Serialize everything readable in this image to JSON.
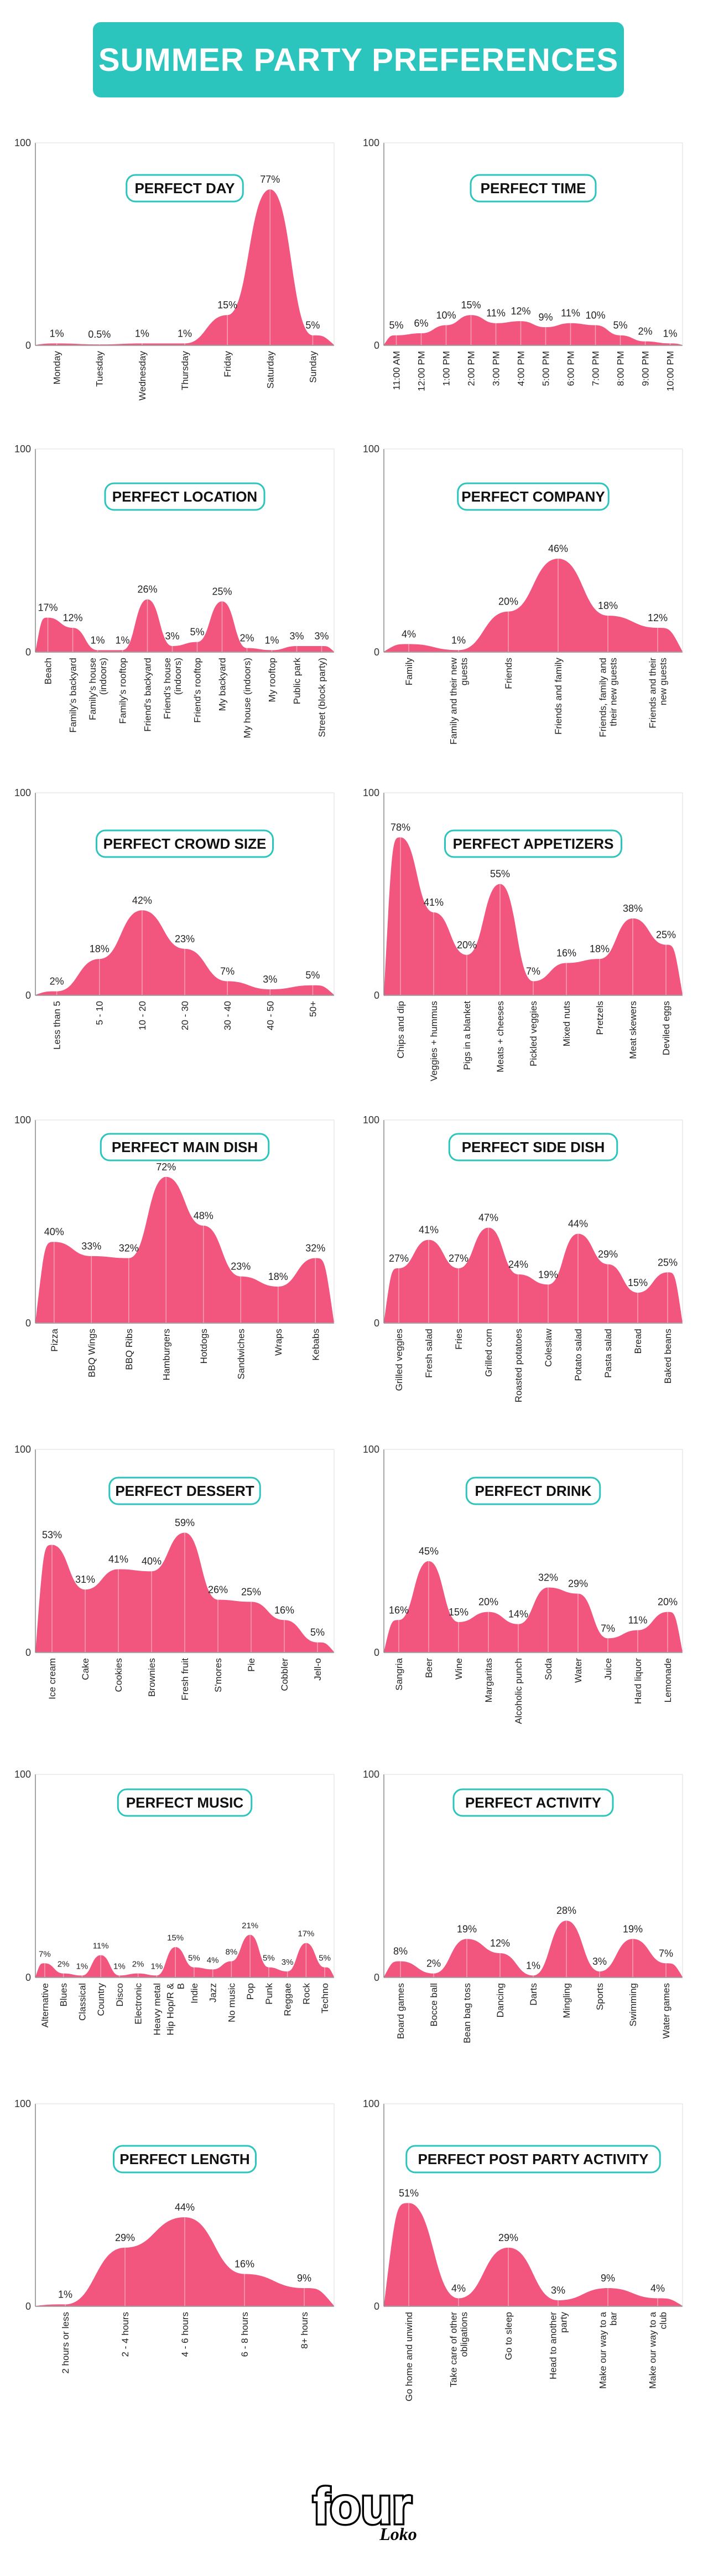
{
  "title": "SUMMER PARTY PREFERENCES",
  "colors": {
    "banner": "#2cc5bd",
    "fill": "#f2557d",
    "title_border": "#2cc5bd",
    "axis": "#888888"
  },
  "brand": {
    "logo_main": "four",
    "logo_sub": "Loko"
  },
  "chart_data": [
    {
      "type": "area",
      "title": "PERFECT DAY",
      "ylabel_max": "100",
      "ylim": [
        0,
        100
      ],
      "categories": [
        "Monday",
        "Tuesday",
        "Wednesday",
        "Thursday",
        "Friday",
        "Saturday",
        "Sunday"
      ],
      "values": [
        1,
        0.5,
        1,
        1,
        15,
        77,
        5
      ],
      "labels": [
        "1%",
        "0.5%",
        "1%",
        "1%",
        "15%",
        "77%",
        "5%"
      ]
    },
    {
      "type": "area",
      "title": "PERFECT TIME",
      "ylabel_max": "100",
      "ylim": [
        0,
        100
      ],
      "categories": [
        "11:00 AM",
        "12:00 PM",
        "1:00 PM",
        "2:00 PM",
        "3:00 PM",
        "4:00 PM",
        "5:00 PM",
        "6:00 PM",
        "7:00 PM",
        "8:00 PM",
        "9:00 PM",
        "10:00 PM"
      ],
      "values": [
        5,
        6,
        10,
        15,
        11,
        12,
        9,
        11,
        10,
        5,
        2,
        1
      ],
      "labels": [
        "5%",
        "6%",
        "10%",
        "15%",
        "11%",
        "12%",
        "9%",
        "11%",
        "10%",
        "5%",
        "2%",
        "1%"
      ]
    },
    {
      "type": "area",
      "title": "PERFECT LOCATION",
      "ylabel_max": "100",
      "ylim": [
        0,
        100
      ],
      "categories": [
        "Beach",
        "Family's backyard",
        "Family's house (indoors)",
        "Family's rooftop",
        "Friend's backyard",
        "Friend's house (indoors)",
        "Friend's rooftop",
        "My backyard",
        "My house (indoors)",
        "My rooftop",
        "Public park",
        "Street (block party)"
      ],
      "values": [
        17,
        12,
        1,
        1,
        26,
        3,
        5,
        25,
        2,
        1,
        3,
        3
      ],
      "labels": [
        "17%",
        "12%",
        "1%",
        "1%",
        "26%",
        "3%",
        "5%",
        "25%",
        "2%",
        "1%",
        "3%",
        "3%"
      ]
    },
    {
      "type": "area",
      "title": "PERFECT COMPANY",
      "ylabel_max": "100",
      "ylim": [
        0,
        100
      ],
      "categories": [
        "Family",
        "Family and their new guests",
        "Friends",
        "Friends and family",
        "Friends, family and their new guests",
        "Friends and their new guests"
      ],
      "values": [
        4,
        1,
        20,
        46,
        18,
        12
      ],
      "labels": [
        "4%",
        "1%",
        "20%",
        "46%",
        "18%",
        "12%"
      ]
    },
    {
      "type": "area",
      "title": "PERFECT CROWD SIZE",
      "ylabel_max": "100",
      "ylim": [
        0,
        100
      ],
      "categories": [
        "Less than 5",
        "5 - 10",
        "10 - 20",
        "20 - 30",
        "30 - 40",
        "40 - 50",
        "50+"
      ],
      "values": [
        2,
        18,
        42,
        23,
        7,
        3,
        5
      ],
      "labels": [
        "2%",
        "18%",
        "42%",
        "23%",
        "7%",
        "3%",
        "5%"
      ]
    },
    {
      "type": "area",
      "title": "PERFECT APPETIZERS",
      "ylabel_max": "100",
      "ylim": [
        0,
        100
      ],
      "categories": [
        "Chips and dip",
        "Veggies + hummus",
        "Pigs in a blanket",
        "Meats + cheeses",
        "Pickled veggies",
        "Mixed nuts",
        "Pretzels",
        "Meat skewers",
        "Deviled eggs"
      ],
      "values": [
        78,
        41,
        20,
        55,
        7,
        16,
        18,
        38,
        25
      ],
      "labels": [
        "78%",
        "41%",
        "20%",
        "55%",
        "7%",
        "16%",
        "18%",
        "38%",
        "25%"
      ]
    },
    {
      "type": "area",
      "title": "PERFECT MAIN DISH",
      "ylabel_max": "100",
      "ylim": [
        0,
        100
      ],
      "categories": [
        "Pizza",
        "BBQ Wings",
        "BBQ Ribs",
        "Hamburgers",
        "Hotdogs",
        "Sandwiches",
        "Wraps",
        "Kebabs"
      ],
      "values": [
        40,
        33,
        32,
        72,
        48,
        23,
        18,
        32
      ],
      "labels": [
        "40%",
        "33%",
        "32%",
        "72%",
        "48%",
        "23%",
        "18%",
        "32%"
      ]
    },
    {
      "type": "area",
      "title": "PERFECT SIDE DISH",
      "ylabel_max": "100",
      "ylim": [
        0,
        100
      ],
      "categories": [
        "Grilled veggies",
        "Fresh salad",
        "Fries",
        "Grilled corn",
        "Roasted potatoes",
        "Coleslaw",
        "Potato salad",
        "Pasta salad",
        "Bread",
        "Baked beans"
      ],
      "values": [
        27,
        41,
        27,
        47,
        24,
        19,
        44,
        29,
        15,
        25
      ],
      "labels": [
        "27%",
        "41%",
        "27%",
        "47%",
        "24%",
        "19%",
        "44%",
        "29%",
        "15%",
        "25%"
      ]
    },
    {
      "type": "area",
      "title": "PERFECT DESSERT",
      "ylabel_max": "100",
      "ylim": [
        0,
        100
      ],
      "categories": [
        "Ice cream",
        "Cake",
        "Cookies",
        "Brownies",
        "Fresh fruit",
        "S'mores",
        "Pie",
        "Cobbler",
        "Jell-o"
      ],
      "values": [
        53,
        31,
        41,
        40,
        59,
        26,
        25,
        16,
        5
      ],
      "labels": [
        "53%",
        "31%",
        "41%",
        "40%",
        "59%",
        "26%",
        "25%",
        "16%",
        "5%"
      ]
    },
    {
      "type": "area",
      "title": "PERFECT DRINK",
      "ylabel_max": "100",
      "ylim": [
        0,
        100
      ],
      "categories": [
        "Sangria",
        "Beer",
        "Wine",
        "Margaritas",
        "Alcoholic punch",
        "Soda",
        "Water",
        "Juice",
        "Hard liquor",
        "Lemonade"
      ],
      "values": [
        16,
        45,
        15,
        20,
        14,
        32,
        29,
        7,
        11,
        20
      ],
      "labels": [
        "16%",
        "45%",
        "15%",
        "20%",
        "14%",
        "32%",
        "29%",
        "7%",
        "11%",
        "20%"
      ]
    },
    {
      "type": "area",
      "title": "PERFECT MUSIC",
      "ylabel_max": "100",
      "ylim": [
        0,
        100
      ],
      "categories": [
        "Alternative",
        "Blues",
        "Classical",
        "Country",
        "Disco",
        "Electronic",
        "Heavy metal",
        "Hip Hop/R & B",
        "Indie",
        "Jazz",
        "No music",
        "Pop",
        "Punk",
        "Reggae",
        "Rock",
        "Techno"
      ],
      "values": [
        7,
        2,
        1,
        11,
        1,
        2,
        1,
        15,
        5,
        4,
        8,
        21,
        5,
        3,
        17,
        5
      ],
      "labels": [
        "7%",
        "2%",
        "1%",
        "11%",
        "1%",
        "2%",
        "1%",
        "15%",
        "5%",
        "4%",
        "8%",
        "21%",
        "5%",
        "3%",
        "17%",
        "5%"
      ]
    },
    {
      "type": "area",
      "title": "PERFECT ACTIVITY",
      "ylabel_max": "100",
      "ylim": [
        0,
        100
      ],
      "categories": [
        "Board games",
        "Bocce ball",
        "Bean bag toss",
        "Dancing",
        "Darts",
        "Mingling",
        "Sports",
        "Swimming",
        "Water games"
      ],
      "values": [
        8,
        2,
        19,
        12,
        1,
        28,
        3,
        19,
        7
      ],
      "labels": [
        "8%",
        "2%",
        "19%",
        "12%",
        "1%",
        "28%",
        "3%",
        "19%",
        "7%"
      ]
    },
    {
      "type": "area",
      "title": "PERFECT LENGTH",
      "ylabel_max": "100",
      "ylim": [
        0,
        100
      ],
      "categories": [
        "2 hours or less",
        "2 - 4 hours",
        "4 - 6 hours",
        "6 - 8 hours",
        "8+ hours"
      ],
      "values": [
        1,
        29,
        44,
        16,
        9
      ],
      "labels": [
        "1%",
        "29%",
        "44%",
        "16%",
        "9%"
      ]
    },
    {
      "type": "area",
      "title": "PERFECT POST PARTY ACTIVITY",
      "ylabel_max": "100",
      "ylim": [
        0,
        100
      ],
      "categories": [
        "Go home and unwind",
        "Take care of other obligations",
        "Go to sleep",
        "Head to another party",
        "Make our way to a bar",
        "Make our way to a club"
      ],
      "values": [
        51,
        4,
        29,
        3,
        9,
        4
      ],
      "labels": [
        "51%",
        "4%",
        "29%",
        "3%",
        "9%",
        "4%"
      ]
    }
  ]
}
